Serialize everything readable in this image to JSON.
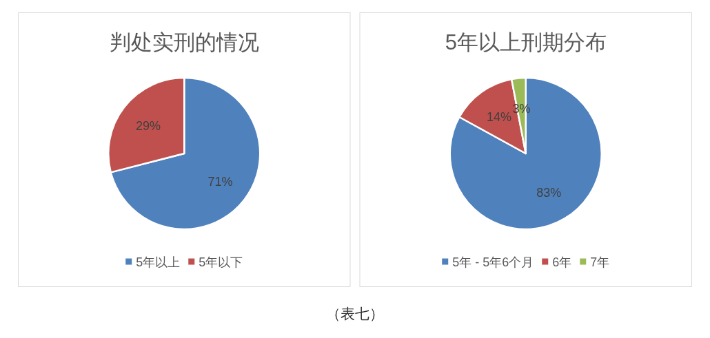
{
  "chart_data": [
    {
      "type": "pie",
      "title": "判处实刑的情况",
      "categories": [
        "5年以上",
        "5年以下"
      ],
      "values": [
        71,
        29
      ],
      "colors": [
        "#4f81bd",
        "#c0504d"
      ],
      "value_labels": [
        "71%",
        "29%"
      ],
      "legend": "bottom",
      "annotations": [
        "（表七）"
      ]
    },
    {
      "type": "pie",
      "title": "5年以上刑期分布",
      "categories": [
        "5年 - 5年6个月",
        "6年",
        "7年"
      ],
      "values": [
        83,
        14,
        3
      ],
      "colors": [
        "#4f81bd",
        "#c0504d",
        "#9bbb59"
      ],
      "value_labels": [
        "83%",
        "14%",
        "3%"
      ],
      "legend": "bottom"
    }
  ]
}
